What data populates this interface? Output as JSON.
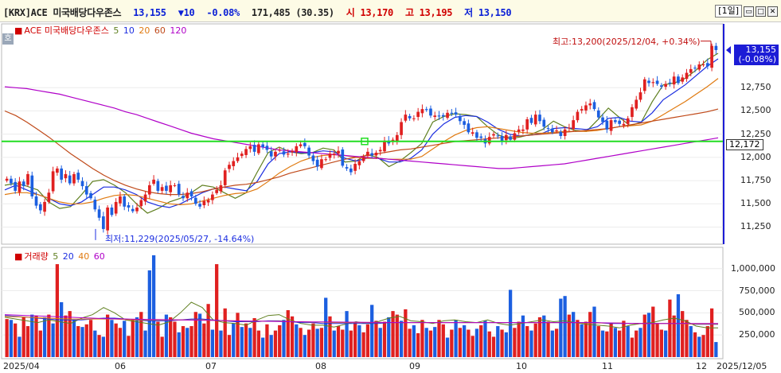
{
  "header": {
    "code": "[KRX]ACE 미국배당다우존스",
    "price": "13,155",
    "change": "▼10",
    "change_pct": "-0.08%",
    "volume": "171,485",
    "volume_pct": "(30.35)",
    "open_label": "시",
    "open": "13,170",
    "high_label": "고",
    "high": "13,195",
    "low_label": "저",
    "low": "13,150",
    "period": "[1일]",
    "btn_min": "▭",
    "btn_max": "□",
    "btn_close": "✕"
  },
  "price_panel": {
    "legend_name": "ACE 미국배당다우존스",
    "ma_labels": [
      "5",
      "10",
      "20",
      "60",
      "120"
    ],
    "ma_colors": [
      "#5f7f1f",
      "#1c2ee0",
      "#e07a10",
      "#c04a1a",
      "#b000c8"
    ],
    "ho_label": "호",
    "high_annotation": "최고:13,200(2025/12/04, +0.34%)",
    "low_annotation": "최저:11,229(2025/05/27, -14.64%)",
    "current_price_tag": "13,155",
    "current_change_tag": "(-0.08%)",
    "hline_value": "12,172",
    "y_ticks": [
      "12,750",
      "12,500",
      "12,250",
      "12,000",
      "11,750",
      "11,500",
      "11,250"
    ],
    "y_tick_values": [
      12750,
      12500,
      12250,
      12000,
      11750,
      11500,
      11250
    ]
  },
  "volume_panel": {
    "legend_name": "거래량",
    "ma_labels": [
      "5",
      "20",
      "40",
      "60"
    ],
    "ma_colors": [
      "#5f7f1f",
      "#1c2ee0",
      "#e07a10",
      "#b000c8"
    ],
    "y_ticks": [
      "1,000,000",
      "750,000",
      "500,000",
      "250,000"
    ],
    "y_tick_values": [
      1000000,
      750000,
      500000,
      250000
    ]
  },
  "x_axis": {
    "labels": [
      "2025/04",
      "06",
      "07",
      "08",
      "09",
      "10",
      "11",
      "12",
      "2025/12/05"
    ]
  },
  "colors": {
    "up": "#e02020",
    "down": "#1c5fe0",
    "hline": "#22dd22",
    "vline": "#1c1cd6",
    "price_tag": "#1c1cd6"
  },
  "chart_data": {
    "type": "candlestick",
    "price_range": [
      11100,
      13300
    ],
    "volume_range": [
      0,
      1150000
    ],
    "hline": 12172,
    "high_point": 13200,
    "low_point": 11229,
    "close_series": [
      11770,
      11720,
      11640,
      11740,
      11690,
      11820,
      11580,
      11480,
      11430,
      11520,
      11620,
      11850,
      11880,
      11760,
      11820,
      11720,
      11820,
      11760,
      11690,
      11600,
      11560,
      11440,
      11350,
      11229,
      11460,
      11380,
      11520,
      11580,
      11470,
      11460,
      11420,
      11460,
      11540,
      11600,
      11700,
      11760,
      11640,
      11680,
      11640,
      11700,
      11700,
      11600,
      11560,
      11620,
      11580,
      11500,
      11470,
      11530,
      11540,
      11600,
      11650,
      11700,
      11860,
      11920,
      11960,
      12000,
      12040,
      12090,
      12120,
      12060,
      12140,
      12110,
      12080,
      12010,
      12060,
      12080,
      12030,
      12040,
      12070,
      12120,
      12140,
      12120,
      12020,
      11960,
      11900,
      11980,
      11980,
      12040,
      12040,
      12070,
      11910,
      11880,
      11840,
      11930,
      11960,
      12000,
      12060,
      12020,
      12050,
      12080,
      12180,
      12150,
      12190,
      12240,
      12380,
      12460,
      12420,
      12420,
      12490,
      12520,
      12510,
      12450,
      12450,
      12440,
      12440,
      12480,
      12470,
      12460,
      12390,
      12350,
      12270,
      12270,
      12210,
      12210,
      12150,
      12220,
      12250,
      12230,
      12170,
      12240,
      12190,
      12260,
      12300,
      12300,
      12410,
      12370,
      12460,
      12390,
      12330,
      12310,
      12270,
      12290,
      12230,
      12300,
      12320,
      12400,
      12490,
      12520,
      12560,
      12580,
      12520,
      12430,
      12380,
      12300,
      12400,
      12380,
      12360,
      12360,
      12420,
      12540,
      12620,
      12700,
      12840,
      12800,
      12810,
      12790,
      12760,
      12790,
      12800,
      12870,
      12800,
      12860,
      12910,
      12950,
      12960,
      13000,
      13000,
      12980,
      13200,
      13155
    ],
    "ma_series": [
      {
        "name": "5",
        "values": [
          11700,
          11720,
          11690,
          11650,
          11520,
          11450,
          11470,
          11600,
          11740,
          11760,
          11700,
          11620,
          11500,
          11400,
          11450,
          11520,
          11560,
          11620,
          11700,
          11680,
          11620,
          11560,
          11620,
          11840,
          12050,
          12110,
          12060,
          12040,
          12050,
          12100,
          12080,
          11950,
          11960,
          12030,
          12000,
          11900,
          11960,
          12050,
          12150,
          12380,
          12440,
          12470,
          12460,
          12440,
          12330,
          12240,
          12200,
          12220,
          12250,
          12300,
          12390,
          12330,
          12290,
          12280,
          12400,
          12530,
          12430,
          12340,
          12380,
          12600,
          12780,
          12800,
          12850,
          12940,
          13050,
          13120
        ]
      },
      {
        "name": "10",
        "values": [
          11650,
          11700,
          11650,
          11600,
          11560,
          11500,
          11480,
          11520,
          11600,
          11680,
          11680,
          11650,
          11600,
          11520,
          11480,
          11460,
          11500,
          11560,
          11620,
          11660,
          11680,
          11660,
          11640,
          11740,
          11930,
          12040,
          12060,
          12050,
          12050,
          12070,
          12060,
          11990,
          11960,
          11990,
          11990,
          11950,
          11950,
          11990,
          12080,
          12250,
          12360,
          12430,
          12450,
          12440,
          12380,
          12300,
          12250,
          12230,
          12240,
          12260,
          12310,
          12320,
          12310,
          12300,
          12330,
          12420,
          12430,
          12390,
          12380,
          12480,
          12620,
          12700,
          12780,
          12880,
          12980,
          13060
        ]
      },
      {
        "name": "20",
        "values": [
          11600,
          11620,
          11620,
          11600,
          11560,
          11520,
          11500,
          11500,
          11520,
          11560,
          11590,
          11600,
          11590,
          11560,
          11530,
          11500,
          11490,
          11500,
          11530,
          11560,
          11590,
          11610,
          11620,
          11660,
          11740,
          11830,
          11900,
          11960,
          12000,
          12020,
          12030,
          12020,
          12000,
          11990,
          11990,
          11980,
          11980,
          11980,
          12010,
          12090,
          12170,
          12240,
          12290,
          12320,
          12330,
          12310,
          12290,
          12270,
          12260,
          12260,
          12270,
          12280,
          12280,
          12280,
          12290,
          12310,
          12330,
          12340,
          12350,
          12390,
          12460,
          12530,
          12600,
          12680,
          12760,
          12850
        ]
      },
      {
        "name": "60",
        "values": [
          12500,
          12450,
          12380,
          12300,
          12220,
          12130,
          12040,
          11960,
          11880,
          11810,
          11750,
          11700,
          11660,
          11630,
          11610,
          11600,
          11600,
          11610,
          11630,
          11660,
          11680,
          11700,
          11710,
          11730,
          11760,
          11790,
          11830,
          11860,
          11890,
          11920,
          11950,
          11980,
          12000,
          12020,
          12040,
          12060,
          12080,
          12090,
          12110,
          12130,
          12150,
          12170,
          12180,
          12190,
          12200,
          12210,
          12220,
          12230,
          12240,
          12250,
          12260,
          12270,
          12280,
          12290,
          12300,
          12310,
          12330,
          12350,
          12370,
          12390,
          12410,
          12430,
          12450,
          12470,
          12490,
          12520
        ]
      },
      {
        "name": "120",
        "values": [
          12760,
          12750,
          12740,
          12720,
          12700,
          12680,
          12650,
          12620,
          12590,
          12560,
          12530,
          12490,
          12460,
          12420,
          12380,
          12340,
          12300,
          12260,
          12230,
          12200,
          12180,
          12160,
          12140,
          12120,
          12100,
          12080,
          12070,
          12060,
          12050,
          12040,
          12030,
          12020,
          12010,
          12000,
          11990,
          11980,
          11970,
          11960,
          11950,
          11940,
          11930,
          11920,
          11910,
          11900,
          11890,
          11880,
          11880,
          11890,
          11900,
          11910,
          11920,
          11930,
          11950,
          11970,
          11990,
          12010,
          12030,
          12050,
          12070,
          12090,
          12110,
          12130,
          12150,
          12170,
          12190,
          12210
        ]
      }
    ],
    "volume_values": [
      430000,
      420000,
      380000,
      230000,
      450000,
      350000,
      480000,
      470000,
      300000,
      450000,
      480000,
      380000,
      1050000,
      620000,
      470000,
      520000,
      420000,
      350000,
      340000,
      370000,
      420000,
      300000,
      250000,
      230000,
      480000,
      420000,
      380000,
      330000,
      410000,
      240000,
      430000,
      450000,
      510000,
      300000,
      980000,
      1150000,
      400000,
      230000,
      480000,
      450000,
      400000,
      280000,
      350000,
      330000,
      350000,
      510000,
      490000,
      380000,
      600000,
      310000,
      1050000,
      300000,
      550000,
      250000,
      380000,
      500000,
      340000,
      380000,
      330000,
      440000,
      300000,
      220000,
      370000,
      250000,
      300000,
      360000,
      420000,
      530000,
      460000,
      370000,
      330000,
      250000,
      310000,
      380000,
      320000,
      330000,
      670000,
      460000,
      300000,
      350000,
      310000,
      520000,
      300000,
      390000,
      360000,
      280000,
      370000,
      590000,
      410000,
      330000,
      400000,
      450000,
      520000,
      480000,
      410000,
      540000,
      320000,
      360000,
      270000,
      420000,
      330000,
      300000,
      340000,
      420000,
      370000,
      220000,
      310000,
      420000,
      330000,
      360000,
      310000,
      240000,
      320000,
      360000,
      410000,
      290000,
      230000,
      350000,
      310000,
      280000,
      760000,
      330000,
      400000,
      470000,
      350000,
      300000,
      380000,
      450000,
      470000,
      400000,
      300000,
      320000,
      660000,
      690000,
      480000,
      510000,
      420000,
      370000,
      400000,
      510000,
      570000,
      350000,
      300000,
      290000,
      390000,
      330000,
      300000,
      410000,
      350000,
      220000,
      300000,
      330000,
      480000,
      500000,
      570000,
      380000,
      310000,
      300000,
      650000,
      470000,
      710000,
      520000,
      420000,
      350000,
      280000,
      230000,
      250000,
      350000,
      550000,
      170000
    ],
    "volume_up": [
      true,
      false,
      true,
      false,
      true,
      true,
      false,
      true,
      true,
      false,
      true,
      false,
      true,
      false,
      true,
      true,
      false,
      true,
      false,
      true,
      true,
      false,
      true,
      false,
      true,
      false,
      true,
      true,
      false,
      true,
      true,
      false,
      true,
      false,
      false,
      false,
      true,
      true,
      false,
      true,
      true,
      false,
      true,
      false,
      true,
      true,
      false,
      true,
      true,
      false,
      true,
      false,
      true,
      true,
      false,
      true,
      false,
      true,
      false,
      true,
      true,
      false,
      true,
      false,
      true,
      true,
      false,
      true,
      true,
      false,
      true,
      false,
      true,
      true,
      false,
      true,
      false,
      true,
      false,
      true,
      true,
      false,
      true,
      true,
      false,
      true,
      true,
      false,
      true,
      false,
      true,
      false,
      true,
      true,
      false,
      true,
      true,
      false,
      true,
      true,
      false,
      true,
      false,
      true,
      true,
      false,
      true,
      false,
      true,
      false,
      true,
      true,
      false,
      true,
      false,
      true,
      true,
      false,
      true,
      false,
      false,
      true,
      true,
      false,
      true,
      false,
      true,
      true,
      false,
      true,
      false,
      true,
      false,
      false,
      true,
      false,
      true,
      false,
      true,
      true,
      false,
      true,
      false,
      true,
      true,
      false,
      true,
      true,
      false,
      true,
      true,
      false,
      true,
      false,
      true,
      true,
      true,
      false,
      true,
      true,
      false,
      true,
      true,
      false,
      true,
      false,
      true,
      true,
      true,
      false,
      true,
      false
    ],
    "volume_ma": [
      {
        "name": "5",
        "values": [
          450000,
          430000,
          410000,
          390000,
          420000,
          400000,
          380000,
          440000,
          480000,
          560000,
          500000,
          420000,
          400000,
          380000,
          360000,
          400000,
          500000,
          620000,
          560000,
          420000,
          390000,
          380000,
          360000,
          420000,
          470000,
          480000,
          420000,
          380000,
          360000,
          360000,
          340000,
          370000,
          400000,
          380000,
          400000,
          440000,
          460000,
          410000,
          400000,
          380000,
          410000,
          420000,
          400000,
          390000,
          420000,
          380000,
          360000,
          380000,
          400000,
          420000,
          400000,
          410000,
          390000,
          370000,
          360000,
          350000,
          330000,
          360000,
          380000,
          390000,
          420000,
          440000,
          410000,
          350000,
          330000,
          330000
        ]
      },
      {
        "name": "20",
        "values": [
          470000,
          460000,
          450000,
          440000,
          430000,
          420000,
          420000,
          420000,
          430000,
          440000,
          440000,
          430000,
          420000,
          410000,
          410000,
          410000,
          420000,
          430000,
          430000,
          420000,
          410000,
          400000,
          400000,
          400000,
          410000,
          410000,
          400000,
          390000,
          390000,
          380000,
          380000,
          380000,
          380000,
          380000,
          380000,
          390000,
          390000,
          390000,
          390000,
          390000,
          390000,
          390000,
          390000,
          390000,
          390000,
          390000,
          390000,
          390000,
          390000,
          390000,
          390000,
          390000,
          390000,
          390000,
          390000,
          380000,
          380000,
          380000,
          380000,
          380000,
          380000,
          380000,
          380000,
          370000,
          370000,
          370000
        ]
      },
      {
        "name": "40",
        "values": [
          460000,
          455000,
          450000,
          445000,
          440000,
          435000,
          430000,
          430000,
          430000,
          430000,
          430000,
          425000,
          420000,
          420000,
          420000,
          420000,
          420000,
          420000,
          420000,
          415000,
          410000,
          410000,
          405000,
          405000,
          405000,
          405000,
          400000,
          400000,
          395000,
          395000,
          390000,
          390000,
          390000,
          390000,
          390000,
          390000,
          390000,
          390000,
          390000,
          390000,
          390000,
          390000,
          390000,
          390000,
          390000,
          390000,
          390000,
          390000,
          390000,
          390000,
          390000,
          390000,
          390000,
          385000,
          385000,
          385000,
          385000,
          380000,
          380000,
          380000,
          380000,
          380000,
          375000,
          375000,
          375000,
          375000
        ]
      },
      {
        "name": "60",
        "values": [
          480000,
          475000,
          470000,
          465000,
          460000,
          455000,
          450000,
          445000,
          440000,
          435000,
          432000,
          430000,
          428000,
          426000,
          424000,
          422000,
          420000,
          418000,
          416000,
          414000,
          412000,
          410000,
          408000,
          406000,
          404000,
          402000,
          400000,
          399000,
          398000,
          397000,
          396000,
          395000,
          394000,
          393000,
          392000,
          391000,
          390000,
          390000,
          390000,
          390000,
          390000,
          390000,
          390000,
          390000,
          390000,
          390000,
          390000,
          390000,
          390000,
          390000,
          390000,
          390000,
          390000,
          390000,
          388000,
          386000,
          384000,
          382000,
          380000,
          380000,
          380000,
          380000,
          380000,
          380000,
          380000,
          380000
        ]
      }
    ]
  }
}
